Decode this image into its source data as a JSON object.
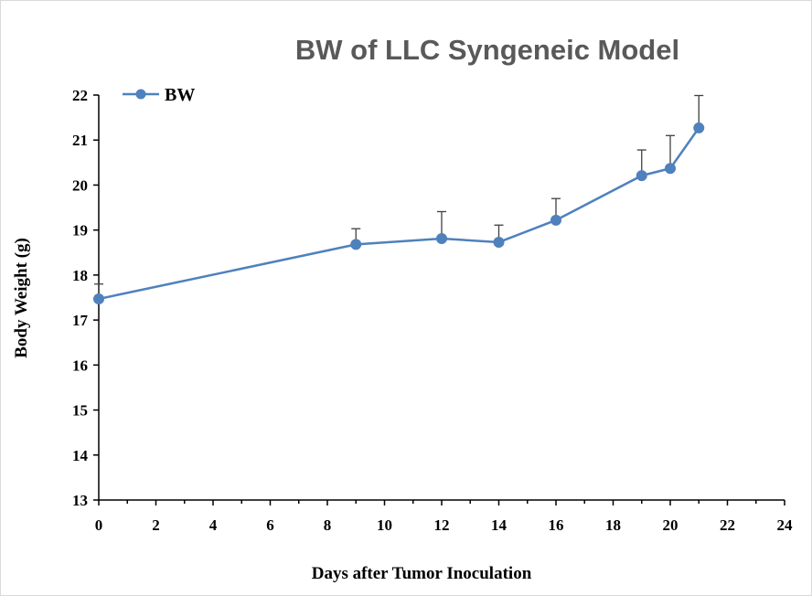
{
  "chart_data": {
    "type": "line",
    "title": "BW of LLC Syngeneic Model",
    "xlabel": "Days after Tumor Inoculation",
    "ylabel": "Body Weight (g)",
    "xlim": [
      0,
      24
    ],
    "ylim": [
      13,
      22
    ],
    "xticks": [
      "0",
      "2",
      "4",
      "6",
      "8",
      "10",
      "12",
      "14",
      "16",
      "18",
      "20",
      "22",
      "24"
    ],
    "yticks": [
      "13",
      "14",
      "15",
      "16",
      "17",
      "18",
      "19",
      "20",
      "21",
      "22"
    ],
    "grid": false,
    "legend_position": "top-left",
    "series": [
      {
        "name": "BW",
        "color": "#4F81BD",
        "x": [
          0,
          9,
          12,
          14,
          16,
          19,
          20,
          21
        ],
        "y": [
          17.47,
          18.68,
          18.81,
          18.73,
          19.22,
          20.21,
          20.37,
          21.27
        ],
        "error": [
          0.33,
          0.35,
          0.6,
          0.38,
          0.48,
          0.57,
          0.73,
          0.72
        ]
      }
    ]
  }
}
